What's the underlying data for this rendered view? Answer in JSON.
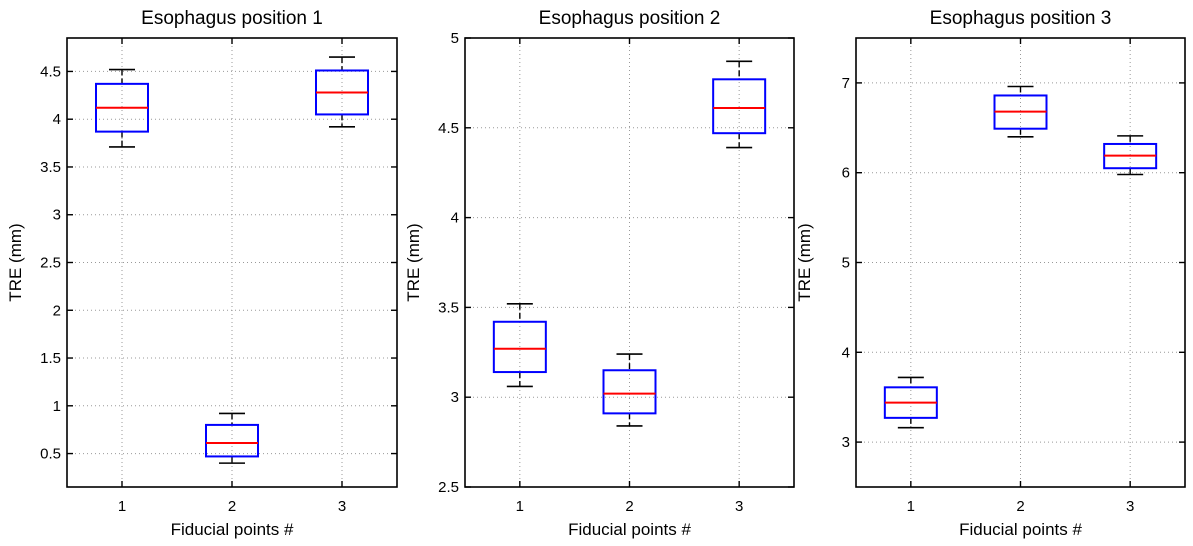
{
  "chart_data": [
    {
      "type": "box",
      "title": "Esophagus position 1",
      "xlabel": "Fiducial points #",
      "ylabel": "TRE (mm)",
      "ylim": [
        0.15,
        4.85
      ],
      "yticks": [
        0.5,
        1,
        1.5,
        2,
        2.5,
        3,
        3.5,
        4,
        4.5
      ],
      "ytick_labels": [
        "0.5",
        "1",
        "1.5",
        "2",
        "2.5",
        "3",
        "3.5",
        "4",
        "4.5"
      ],
      "categories": [
        "1",
        "2",
        "3"
      ],
      "grid": true,
      "boxes": [
        {
          "category": "1",
          "min": 3.71,
          "q1": 3.87,
          "median": 4.12,
          "q3": 4.37,
          "max": 4.52
        },
        {
          "category": "2",
          "min": 0.4,
          "q1": 0.47,
          "median": 0.61,
          "q3": 0.8,
          "max": 0.92
        },
        {
          "category": "3",
          "min": 3.92,
          "q1": 4.05,
          "median": 4.28,
          "q3": 4.51,
          "max": 4.65
        }
      ]
    },
    {
      "type": "box",
      "title": "Esophagus position 2",
      "xlabel": "Fiducial points #",
      "ylabel": "TRE (mm)",
      "ylim": [
        2.5,
        5.0
      ],
      "yticks": [
        2.5,
        3,
        3.5,
        4,
        4.5,
        5
      ],
      "ytick_labels": [
        "2.5",
        "3",
        "3.5",
        "4",
        "4.5",
        "5"
      ],
      "categories": [
        "1",
        "2",
        "3"
      ],
      "grid": true,
      "boxes": [
        {
          "category": "1",
          "min": 3.06,
          "q1": 3.14,
          "median": 3.27,
          "q3": 3.42,
          "max": 3.52
        },
        {
          "category": "2",
          "min": 2.84,
          "q1": 2.91,
          "median": 3.02,
          "q3": 3.15,
          "max": 3.24
        },
        {
          "category": "3",
          "min": 4.39,
          "q1": 4.47,
          "median": 4.61,
          "q3": 4.77,
          "max": 4.87
        }
      ]
    },
    {
      "type": "box",
      "title": "Esophagus position 3",
      "xlabel": "Fiducial points #",
      "ylabel": "TRE (mm)",
      "ylim": [
        2.5,
        7.5
      ],
      "yticks": [
        3,
        4,
        5,
        6,
        7
      ],
      "ytick_labels": [
        "3",
        "4",
        "5",
        "6",
        "7"
      ],
      "categories": [
        "1",
        "2",
        "3"
      ],
      "grid": true,
      "boxes": [
        {
          "category": "1",
          "min": 3.16,
          "q1": 3.27,
          "median": 3.44,
          "q3": 3.61,
          "max": 3.72
        },
        {
          "category": "2",
          "min": 6.4,
          "q1": 6.49,
          "median": 6.68,
          "q3": 6.86,
          "max": 6.96
        },
        {
          "category": "3",
          "min": 5.98,
          "q1": 6.05,
          "median": 6.19,
          "q3": 6.32,
          "max": 6.41
        }
      ]
    }
  ],
  "colors": {
    "box": "#0000ff",
    "median": "#ff0000",
    "whisker": "#000000",
    "grid": "#999999",
    "axes": "#000000"
  }
}
